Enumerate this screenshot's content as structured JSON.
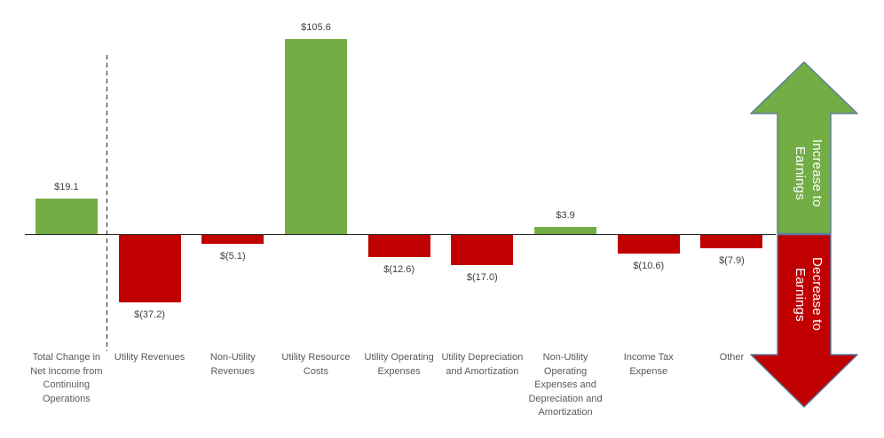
{
  "chart_data": {
    "type": "bar",
    "title": "",
    "categories": [
      "Total Change in Net Income from Continuing Operations",
      "Utility Revenues",
      "Non-Utility Revenues",
      "Utility Resource Costs",
      "Utility Operating Expenses",
      "Utility Depreciation and Amortization",
      "Non-Utility Operating Expenses and Depreciation and Amortization",
      "Income Tax Expense",
      "Other"
    ],
    "values": [
      19.1,
      -37.2,
      -5.1,
      105.6,
      -12.6,
      -17.0,
      3.9,
      -10.6,
      -7.9
    ],
    "value_labels": [
      "$19.1",
      "$(37.2)",
      "$(5.1)",
      "$105.6",
      "$(12.6)",
      "$(17.0)",
      "$3.9",
      "$(10.6)",
      "$(7.9)"
    ],
    "colors": {
      "positive": "#72AE45",
      "negative": "#C00000"
    },
    "baseline": 0,
    "ylim": [
      -45,
      115
    ],
    "grid": false,
    "legend": "none",
    "value_label_position": "outside-end",
    "separator_after_first_category": true
  },
  "arrows": {
    "increase_label": "Increase to Earnings",
    "decrease_label": "Decrease to Earnings",
    "increase_color": "#72AE45",
    "decrease_color": "#C00000",
    "outline_color": "#5B7B9D"
  }
}
